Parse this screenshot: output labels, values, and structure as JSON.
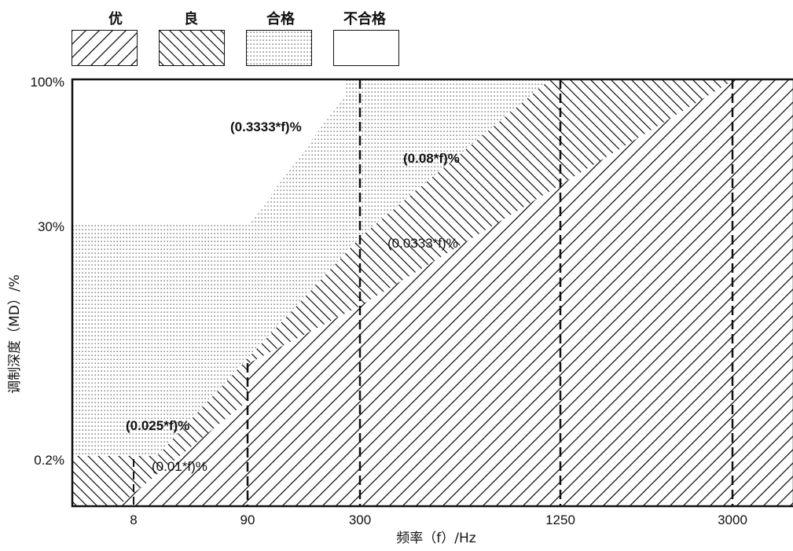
{
  "legend": [
    {
      "label": "优",
      "pattern": "excellent-hatch"
    },
    {
      "label": "良",
      "pattern": "good-hatch"
    },
    {
      "label": "合格",
      "pattern": "acceptable-dots"
    },
    {
      "label": "不合格",
      "pattern": "none"
    }
  ],
  "chart_data": {
    "type": "area",
    "title": "",
    "xlabel": "频率（f）/Hz",
    "ylabel": "调制深度（MD）/%",
    "x_ticks": [
      "8",
      "90",
      "300",
      "1250",
      "3000"
    ],
    "y_ticks": [
      "0.2%",
      "30%",
      "100%"
    ],
    "zones": [
      {
        "name": "优",
        "boundary": "(0.01*f)%"
      },
      {
        "name": "良",
        "boundary": "(0.0333*f)%"
      },
      {
        "name": "合格",
        "boundary": "(0.08*f)%"
      },
      {
        "name": "不合格",
        "boundary": "(0.3333*f)%"
      }
    ],
    "annotations": [
      {
        "text": "(0.3333*f)%",
        "bold": true
      },
      {
        "text": "(0.08*f)%",
        "bold": true
      },
      {
        "text": "(0.0333*f)%",
        "bold": false
      },
      {
        "text": "(0.025*f)%",
        "bold": true
      },
      {
        "text": "(0.01*f)%",
        "bold": false
      }
    ]
  }
}
